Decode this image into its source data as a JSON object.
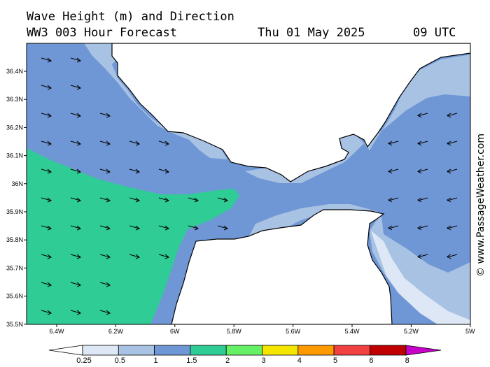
{
  "header": {
    "title": "Wave Height (m) and Direction",
    "model": "WW3 003 Hour Forecast",
    "date": "Thu 01 May 2025",
    "time": "09 UTC"
  },
  "map": {
    "lat_labels": [
      "36.4N",
      "36.3N",
      "36.2N",
      "36.1N",
      "36N",
      "35.9N",
      "35.8N",
      "35.7N",
      "35.6N",
      "35.5N"
    ],
    "lon_labels": [
      "6.4W",
      "6.2W",
      "6W",
      "5.8W",
      "5.6W",
      "5.4W",
      "5.2W",
      "5W"
    ],
    "lat_range": [
      35.5,
      36.5
    ],
    "lon_range": [
      -6.5,
      -5.0
    ],
    "west_arrows_direction": "east",
    "east_arrows_direction": "west"
  },
  "credit": "© www.PassageWeather.com",
  "legend": {
    "labels": [
      "0.25",
      "0.5",
      "1",
      "1.5",
      "2",
      "3",
      "4",
      "5",
      "6",
      "8"
    ],
    "colors": [
      "#ffffff",
      "#dde7f5",
      "#a8c2e3",
      "#6f97d5",
      "#2fcc96",
      "#66f066",
      "#f5e600",
      "#ff9900",
      "#f04040",
      "#c00000",
      "#c800c8"
    ]
  },
  "colors": {
    "sea_light": "#a8c2e3",
    "sea_mid": "#6f97d5",
    "sea_high": "#2fcc96",
    "sea_pale": "#dde7f5",
    "land": "#ffffff"
  }
}
